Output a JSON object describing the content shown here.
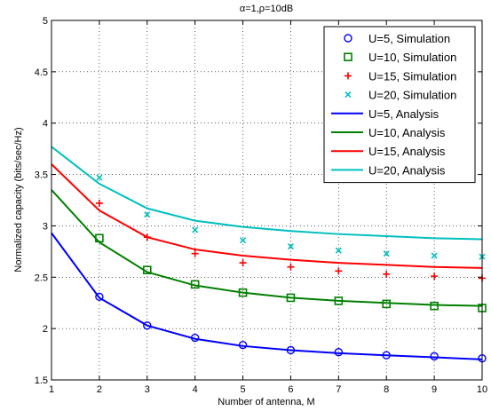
{
  "chart_data": {
    "type": "line",
    "title": "α=1,ρ=10dB",
    "xlabel": "Number of antenna, M",
    "ylabel": "Normalized capacity (bits/sec/Hz)",
    "xlim": [
      1,
      10
    ],
    "ylim": [
      1.5,
      5
    ],
    "xticks": [
      "1",
      "2",
      "3",
      "4",
      "5",
      "6",
      "7",
      "8",
      "9",
      "10"
    ],
    "yticks": [
      "1.5",
      "2",
      "2.5",
      "3",
      "3.5",
      "4",
      "4.5",
      "5"
    ],
    "grid": true,
    "legend_position": "top-right",
    "simulation": [
      {
        "name": "U=5, Simulation",
        "marker": "circle",
        "color": "#0000ff",
        "x": [
          2,
          3,
          4,
          5,
          6,
          7,
          8,
          9,
          10
        ],
        "y": [
          2.31,
          2.03,
          1.91,
          1.84,
          1.79,
          1.77,
          1.74,
          1.73,
          1.71
        ]
      },
      {
        "name": "U=10, Simulation",
        "marker": "square",
        "color": "#008000",
        "x": [
          2,
          3,
          4,
          5,
          6,
          7,
          8,
          9,
          10
        ],
        "y": [
          2.88,
          2.57,
          2.43,
          2.35,
          2.3,
          2.27,
          2.24,
          2.22,
          2.2
        ]
      },
      {
        "name": "U=15, Simulation",
        "marker": "plus",
        "color": "#ff0000",
        "x": [
          2,
          3,
          4,
          5,
          6,
          7,
          8,
          9,
          10
        ],
        "y": [
          3.22,
          2.89,
          2.73,
          2.64,
          2.6,
          2.56,
          2.53,
          2.51,
          2.49
        ]
      },
      {
        "name": "U=20, Simulation",
        "marker": "x",
        "color": "#00bfbf",
        "x": [
          2,
          3,
          4,
          5,
          6,
          7,
          8,
          9,
          10
        ],
        "y": [
          3.47,
          3.11,
          2.96,
          2.86,
          2.8,
          2.76,
          2.73,
          2.71,
          2.7
        ]
      }
    ],
    "analysis": [
      {
        "name": "U=5, Analysis",
        "color": "#0000ff",
        "x": [
          1,
          2,
          3,
          4,
          5,
          6,
          7,
          8,
          9,
          10
        ],
        "y": [
          2.93,
          2.3,
          2.03,
          1.9,
          1.83,
          1.79,
          1.76,
          1.74,
          1.72,
          1.7
        ]
      },
      {
        "name": "U=10, Analysis",
        "color": "#008000",
        "x": [
          1,
          2,
          3,
          4,
          5,
          6,
          7,
          8,
          9,
          10
        ],
        "y": [
          3.35,
          2.84,
          2.55,
          2.42,
          2.35,
          2.3,
          2.27,
          2.25,
          2.23,
          2.22
        ]
      },
      {
        "name": "U=15, Analysis",
        "color": "#ff0000",
        "x": [
          1,
          2,
          3,
          4,
          5,
          6,
          7,
          8,
          9,
          10
        ],
        "y": [
          3.6,
          3.15,
          2.89,
          2.77,
          2.71,
          2.67,
          2.64,
          2.62,
          2.6,
          2.59
        ]
      },
      {
        "name": "U=20, Analysis",
        "color": "#00bfbf",
        "x": [
          1,
          2,
          3,
          4,
          5,
          6,
          7,
          8,
          9,
          10
        ],
        "y": [
          3.77,
          3.41,
          3.17,
          3.05,
          2.99,
          2.95,
          2.92,
          2.9,
          2.88,
          2.87
        ]
      }
    ]
  }
}
